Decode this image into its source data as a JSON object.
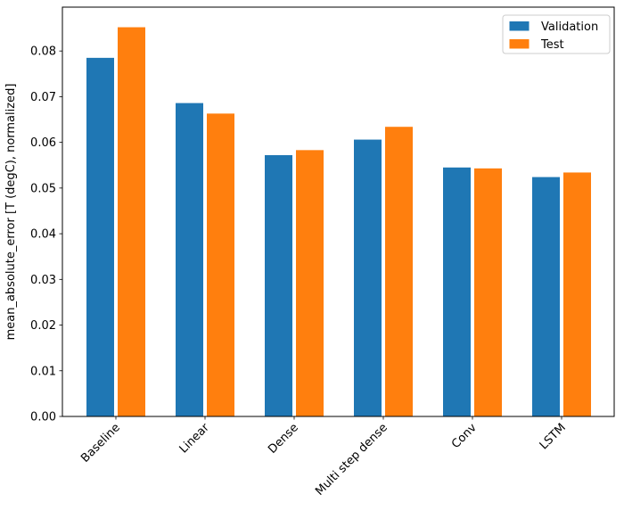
{
  "chart_data": {
    "type": "bar",
    "title": "",
    "xlabel": "",
    "ylabel": "mean_absolute_error [T (degC), normalized]",
    "categories": [
      "Baseline",
      "Linear",
      "Dense",
      "Multi step dense",
      "Conv",
      "LSTM"
    ],
    "series": [
      {
        "name": "Validation",
        "color": "#1f77b4",
        "values": [
          0.0785,
          0.0686,
          0.0572,
          0.0606,
          0.0545,
          0.0524
        ]
      },
      {
        "name": "Test",
        "color": "#ff7f0e",
        "values": [
          0.0852,
          0.0663,
          0.0583,
          0.0634,
          0.0543,
          0.0534
        ]
      }
    ],
    "ylim": [
      0,
      0.0896
    ],
    "yticks": [
      0.0,
      0.01,
      0.02,
      0.03,
      0.04,
      0.05,
      0.06,
      0.07,
      0.08
    ],
    "ytick_labels": [
      "0.00",
      "0.01",
      "0.02",
      "0.03",
      "0.04",
      "0.05",
      "0.06",
      "0.07",
      "0.08"
    ],
    "xtick_rotation_deg": 45,
    "grid": false,
    "legend": {
      "position": "upper right",
      "entries": [
        "Validation",
        "Test"
      ]
    },
    "axis_color": "#000000",
    "legend_border_color": "#cccccc",
    "plot_background": "#ffffff"
  }
}
